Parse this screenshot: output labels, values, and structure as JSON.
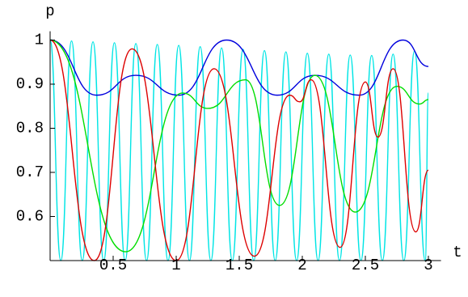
{
  "chart_data": {
    "type": "line",
    "x_label": "t",
    "y_label": "p",
    "xlim": [
      0,
      3.1
    ],
    "ylim": [
      0.5,
      1.02
    ],
    "xticks": [
      0.5,
      1,
      1.5,
      2,
      2.5,
      3
    ],
    "yticks": [
      0.6,
      0.7,
      0.8,
      0.9,
      1
    ],
    "series": [
      {
        "color": "#00e5e5",
        "x": [
          0,
          0.085,
          0.17,
          0.255,
          0.34,
          0.425,
          0.51,
          0.595,
          0.68,
          0.765,
          0.85,
          0.935,
          1.02,
          1.105,
          1.19,
          1.275,
          1.36,
          1.445,
          1.53,
          1.615,
          1.7,
          1.785,
          1.87,
          1.955,
          2.04,
          2.125,
          2.21,
          2.295,
          2.38,
          2.465,
          2.55,
          2.635,
          2.72,
          2.805,
          2.89,
          2.975,
          3.0
        ],
        "values": [
          1,
          0.5,
          0.998,
          0.5,
          0.996,
          0.5,
          0.994,
          0.5,
          0.992,
          0.5,
          0.99,
          0.5,
          0.988,
          0.5,
          0.985,
          0.5,
          0.982,
          0.5,
          0.979,
          0.5,
          0.976,
          0.5,
          0.973,
          0.5,
          0.97,
          0.5,
          0.968,
          0.5,
          0.966,
          0.5,
          0.965,
          0.5,
          0.968,
          0.5,
          0.975,
          0.5,
          0.88
        ]
      },
      {
        "color": "#0000dd",
        "x": [
          0,
          0.37,
          0.68,
          1.02,
          1.4,
          1.8,
          2.1,
          2.45,
          2.8,
          3.0
        ],
        "values": [
          1,
          0.875,
          0.92,
          0.875,
          1.0,
          0.875,
          0.92,
          0.875,
          1.0,
          0.94
        ]
      },
      {
        "color": "#00dd00",
        "x": [
          0,
          0.6,
          1.05,
          1.25,
          1.55,
          1.82,
          2.1,
          2.42,
          2.75,
          2.93,
          3.0
        ],
        "values": [
          1,
          0.52,
          0.88,
          0.845,
          0.91,
          0.625,
          0.92,
          0.61,
          0.895,
          0.855,
          0.865
        ]
      },
      {
        "color": "#dd0000",
        "x": [
          0,
          0.35,
          0.65,
          1.0,
          1.3,
          1.62,
          1.9,
          1.98,
          2.07,
          2.3,
          2.5,
          2.6,
          2.72,
          2.9,
          3.0
        ],
        "values": [
          1,
          0.5,
          0.98,
          0.5,
          0.935,
          0.51,
          0.875,
          0.86,
          0.91,
          0.53,
          0.905,
          0.78,
          0.935,
          0.565,
          0.705
        ]
      }
    ]
  }
}
